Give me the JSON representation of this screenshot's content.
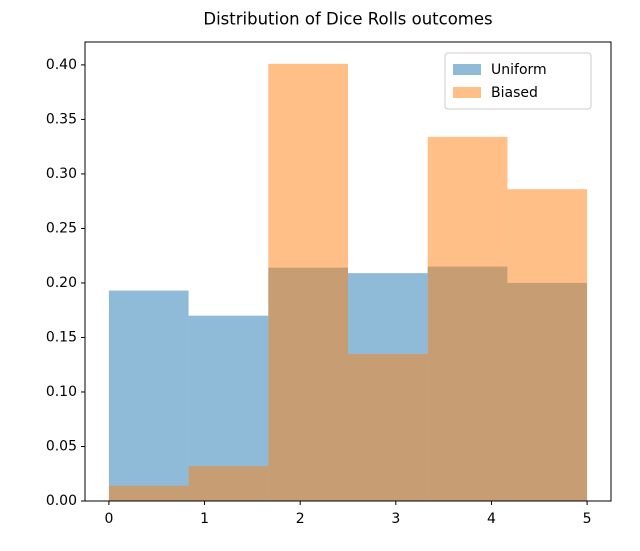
{
  "chart_data": {
    "type": "histogram",
    "title": "Distribution of Dice Rolls outcomes",
    "bins": [
      0,
      0.833,
      1.667,
      2.5,
      3.333,
      4.167,
      5
    ],
    "series": [
      {
        "name": "Uniform",
        "color": "#1f77b4",
        "values": [
          0.193,
          0.17,
          0.214,
          0.209,
          0.215,
          0.2
        ]
      },
      {
        "name": "Biased",
        "color": "#ff7f0e",
        "values": [
          0.014,
          0.032,
          0.401,
          0.135,
          0.334,
          0.286
        ]
      }
    ],
    "opacity": 0.5,
    "xlim": [
      -0.25,
      5.25
    ],
    "xticks": [
      0,
      1,
      2,
      3,
      4,
      5
    ],
    "ylim": [
      0,
      0.421
    ],
    "yticks": [
      {
        "value": 0,
        "label": "0.00"
      },
      {
        "value": 0.05,
        "label": "0.05"
      },
      {
        "value": 0.1,
        "label": "0.10"
      },
      {
        "value": 0.15,
        "label": "0.15"
      },
      {
        "value": 0.2,
        "label": "0.20"
      },
      {
        "value": 0.25,
        "label": "0.25"
      },
      {
        "value": 0.3,
        "label": "0.30"
      },
      {
        "value": 0.35,
        "label": "0.35"
      },
      {
        "value": 0.4,
        "label": "0.40"
      }
    ],
    "legend": "upper right",
    "grid": false
  }
}
